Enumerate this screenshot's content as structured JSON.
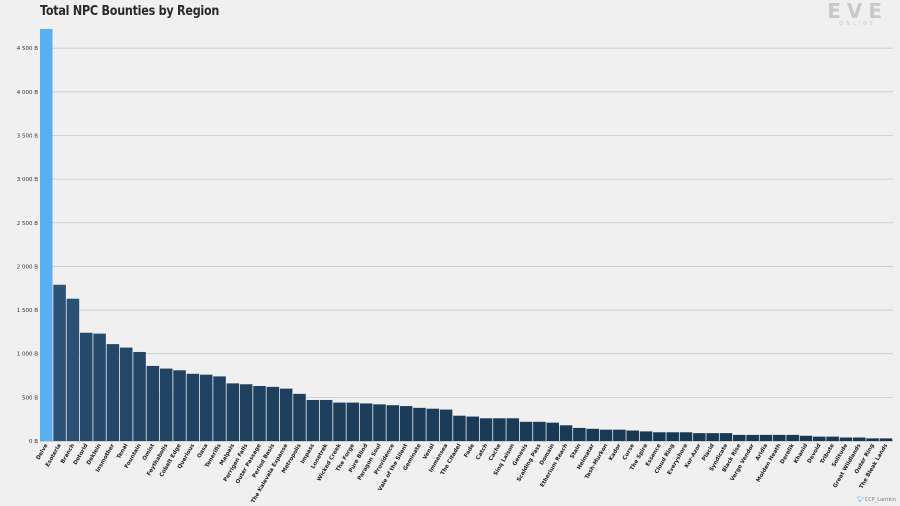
{
  "header": {
    "title": "Total NPC Bounties by Region"
  },
  "branding": {
    "logo_text": "EVE",
    "logo_subtext": "ONLINE",
    "credit_icon": "bird-icon",
    "credit_text": "CCP_Larrikin"
  },
  "colors": {
    "highlight": "#5aaff0",
    "bar_dark": "#173752",
    "bar_mid": "#2c5277",
    "grid": "#c8c8c8"
  },
  "chart_data": {
    "type": "bar",
    "title": "Total NPC Bounties by Region",
    "xlabel": "",
    "ylabel": "",
    "ylim": [
      0,
      4800
    ],
    "yticks": [
      0,
      500,
      1000,
      1500,
      2000,
      2500,
      3000,
      3500,
      4000,
      4500
    ],
    "ytick_labels": [
      "0 B",
      "500 B",
      "1 000 B",
      "1 500 B",
      "2 000 B",
      "2 500 B",
      "3 000 B",
      "3 500 B",
      "4 000 B",
      "4 500 B"
    ],
    "grid": true,
    "legend": "none",
    "highlight_category": "Delve",
    "categories": [
      "Delve",
      "Esoteria",
      "Branch",
      "Detorid",
      "Deklein",
      "Insmother",
      "Tenal",
      "Fountain",
      "Omist",
      "Feythabolis",
      "Cobalt Edge",
      "Querious",
      "Oasa",
      "Tenerifis",
      "Malpais",
      "Perrigen Falls",
      "Outer Passage",
      "Period Basis",
      "The Kalevala Expanse",
      "Metropolis",
      "Impass",
      "Lonetrek",
      "Wicked Creek",
      "The Forge",
      "Pure Blind",
      "Paragon Soul",
      "Providence",
      "Vale of the Silent",
      "Geminate",
      "Venal",
      "Immensea",
      "The Citadel",
      "Fade",
      "Catch",
      "Cache",
      "Sinq Laison",
      "Genesis",
      "Scalding Pass",
      "Domain",
      "Etherium Reach",
      "Stain",
      "Heimatar",
      "Tash-Murkon",
      "Kador",
      "Curse",
      "The Spire",
      "Essence",
      "Cloud Ring",
      "Everyshore",
      "Kor-Azor",
      "Placid",
      "Syndicate",
      "Black Rise",
      "Verge Vendor",
      "Aridia",
      "Molden Heath",
      "Derelik",
      "Khanid",
      "Devoid",
      "Tribute",
      "Solitude",
      "Great Wildlands",
      "Outer Ring",
      "The Bleak Lands"
    ],
    "values": [
      4720,
      1790,
      1630,
      1240,
      1230,
      1110,
      1070,
      1020,
      860,
      830,
      810,
      770,
      760,
      740,
      660,
      650,
      630,
      620,
      600,
      540,
      470,
      470,
      440,
      440,
      430,
      420,
      410,
      400,
      380,
      370,
      360,
      290,
      280,
      260,
      260,
      260,
      220,
      220,
      210,
      180,
      150,
      140,
      130,
      130,
      120,
      110,
      100,
      100,
      100,
      90,
      90,
      90,
      70,
      70,
      70,
      70,
      70,
      60,
      50,
      50,
      40,
      40,
      30,
      30
    ]
  }
}
